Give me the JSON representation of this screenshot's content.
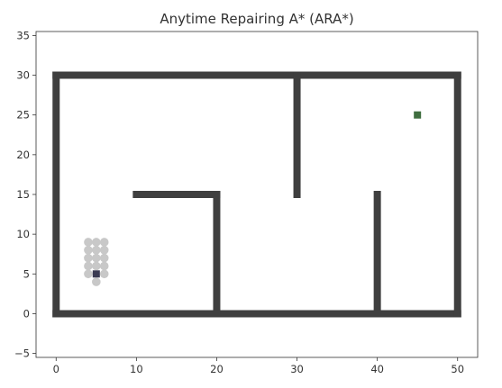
{
  "chart_data": {
    "type": "scatter",
    "title": "Anytime Repairing A* (ARA*)",
    "xlabel": "",
    "ylabel": "",
    "xlim": [
      -2.5,
      52.5
    ],
    "ylim": [
      -5.5,
      35.5
    ],
    "x_ticks": [
      0,
      10,
      20,
      30,
      40,
      50
    ],
    "y_ticks": [
      -5,
      0,
      5,
      10,
      15,
      20,
      25,
      30,
      35
    ],
    "grid": false,
    "colors": {
      "obstacle": "#3f3f3f",
      "explored": "#c8c8c8",
      "start": "#3a3a52",
      "goal": "#3f6e3f"
    },
    "obstacles": [
      {
        "name": "top-wall",
        "from": [
          0,
          30
        ],
        "to": [
          50,
          30
        ]
      },
      {
        "name": "bottom-wall",
        "from": [
          0,
          0
        ],
        "to": [
          50,
          0
        ]
      },
      {
        "name": "left-wall",
        "from": [
          0,
          0
        ],
        "to": [
          0,
          30
        ]
      },
      {
        "name": "right-wall",
        "from": [
          50,
          0
        ],
        "to": [
          50,
          30
        ]
      },
      {
        "name": "inner-wall-horizontal",
        "from": [
          10,
          15
        ],
        "to": [
          20,
          15
        ]
      },
      {
        "name": "inner-wall-vertical-20",
        "from": [
          20,
          0
        ],
        "to": [
          20,
          15
        ]
      },
      {
        "name": "inner-wall-vertical-30",
        "from": [
          30,
          15
        ],
        "to": [
          30,
          30
        ]
      },
      {
        "name": "inner-wall-vertical-40",
        "from": [
          40,
          0
        ],
        "to": [
          40,
          15
        ]
      }
    ],
    "explored": [
      [
        4,
        9
      ],
      [
        5,
        9
      ],
      [
        6,
        9
      ],
      [
        4,
        8
      ],
      [
        5,
        8
      ],
      [
        6,
        8
      ],
      [
        4,
        7
      ],
      [
        5,
        7
      ],
      [
        6,
        7
      ],
      [
        4,
        6
      ],
      [
        5,
        6
      ],
      [
        6,
        6
      ],
      [
        4,
        5
      ],
      [
        6,
        5
      ],
      [
        5,
        4
      ]
    ],
    "start": [
      5,
      5
    ],
    "goal": [
      45,
      25
    ]
  }
}
